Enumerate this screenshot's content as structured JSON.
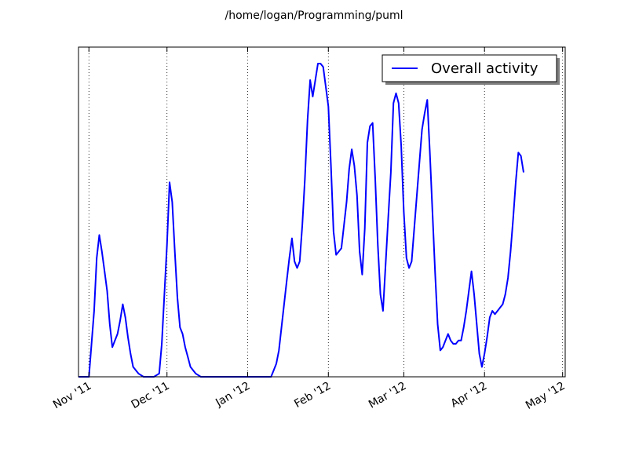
{
  "chart_data": {
    "type": "line",
    "title": "/home/logan/Programming/puml",
    "xlabel": "",
    "ylabel": "",
    "x_axis_type": "date",
    "xlim": [
      "2011-10-28",
      "2012-05-02"
    ],
    "ylim": [
      0,
      100
    ],
    "grid": {
      "x": true,
      "y": false,
      "style": "dotted"
    },
    "y_tick_labels": false,
    "legend_placement": "top-right",
    "x_ticks": [
      {
        "date": "2011-11-01",
        "label": "Nov '11"
      },
      {
        "date": "2011-12-01",
        "label": "Dec '11"
      },
      {
        "date": "2012-01-01",
        "label": "Jan '12"
      },
      {
        "date": "2012-02-01",
        "label": "Feb '12"
      },
      {
        "date": "2012-03-01",
        "label": "Mar '12"
      },
      {
        "date": "2012-04-01",
        "label": "Apr '12"
      },
      {
        "date": "2012-05-01",
        "label": "May '12"
      }
    ],
    "series": [
      {
        "name": "Overall activity",
        "color": "#0000ff",
        "points": [
          [
            "2011-10-28",
            0
          ],
          [
            "2011-11-01",
            0
          ],
          [
            "2011-11-02",
            10
          ],
          [
            "2011-11-03",
            20
          ],
          [
            "2011-11-04",
            36
          ],
          [
            "2011-11-05",
            43
          ],
          [
            "2011-11-06",
            38
          ],
          [
            "2011-11-07",
            32
          ],
          [
            "2011-11-08",
            26
          ],
          [
            "2011-11-09",
            16
          ],
          [
            "2011-11-10",
            9
          ],
          [
            "2011-11-11",
            11
          ],
          [
            "2011-11-12",
            13
          ],
          [
            "2011-11-13",
            17
          ],
          [
            "2011-11-14",
            22
          ],
          [
            "2011-11-15",
            18
          ],
          [
            "2011-11-16",
            12
          ],
          [
            "2011-11-17",
            7
          ],
          [
            "2011-11-18",
            3
          ],
          [
            "2011-11-20",
            1
          ],
          [
            "2011-11-22",
            0
          ],
          [
            "2011-11-26",
            0
          ],
          [
            "2011-11-28",
            1
          ],
          [
            "2011-11-29",
            10
          ],
          [
            "2011-11-30",
            25
          ],
          [
            "2011-12-01",
            40
          ],
          [
            "2011-12-02",
            59
          ],
          [
            "2011-12-03",
            53
          ],
          [
            "2011-12-04",
            38
          ],
          [
            "2011-12-05",
            24
          ],
          [
            "2011-12-06",
            15
          ],
          [
            "2011-12-07",
            13
          ],
          [
            "2011-12-08",
            9
          ],
          [
            "2011-12-09",
            6
          ],
          [
            "2011-12-10",
            3
          ],
          [
            "2011-12-12",
            1
          ],
          [
            "2011-12-14",
            0
          ],
          [
            "2011-12-20",
            0
          ],
          [
            "2012-01-01",
            0
          ],
          [
            "2012-01-10",
            0
          ],
          [
            "2012-01-11",
            2
          ],
          [
            "2012-01-12",
            4
          ],
          [
            "2012-01-13",
            8
          ],
          [
            "2012-01-14",
            15
          ],
          [
            "2012-01-15",
            22
          ],
          [
            "2012-01-16",
            29
          ],
          [
            "2012-01-17",
            36
          ],
          [
            "2012-01-18",
            42
          ],
          [
            "2012-01-19",
            35
          ],
          [
            "2012-01-20",
            33
          ],
          [
            "2012-01-21",
            35
          ],
          [
            "2012-01-22",
            46
          ],
          [
            "2012-01-23",
            60
          ],
          [
            "2012-01-24",
            78
          ],
          [
            "2012-01-25",
            90
          ],
          [
            "2012-01-26",
            85
          ],
          [
            "2012-01-27",
            90
          ],
          [
            "2012-01-28",
            95
          ],
          [
            "2012-01-29",
            95
          ],
          [
            "2012-01-30",
            94
          ],
          [
            "2012-01-31",
            88
          ],
          [
            "2012-02-01",
            82
          ],
          [
            "2012-02-02",
            64
          ],
          [
            "2012-02-03",
            44
          ],
          [
            "2012-02-04",
            37
          ],
          [
            "2012-02-05",
            38
          ],
          [
            "2012-02-06",
            39
          ],
          [
            "2012-02-07",
            46
          ],
          [
            "2012-02-08",
            53
          ],
          [
            "2012-02-09",
            63
          ],
          [
            "2012-02-10",
            69
          ],
          [
            "2012-02-11",
            64
          ],
          [
            "2012-02-12",
            55
          ],
          [
            "2012-02-13",
            38
          ],
          [
            "2012-02-14",
            31
          ],
          [
            "2012-02-15",
            45
          ],
          [
            "2012-02-16",
            71
          ],
          [
            "2012-02-17",
            76
          ],
          [
            "2012-02-18",
            77
          ],
          [
            "2012-02-19",
            60
          ],
          [
            "2012-02-20",
            40
          ],
          [
            "2012-02-21",
            25
          ],
          [
            "2012-02-22",
            20
          ],
          [
            "2012-02-23",
            34
          ],
          [
            "2012-02-24",
            48
          ],
          [
            "2012-02-25",
            62
          ],
          [
            "2012-02-26",
            83
          ],
          [
            "2012-02-27",
            86
          ],
          [
            "2012-02-28",
            83
          ],
          [
            "2012-02-29",
            70
          ],
          [
            "2012-03-01",
            50
          ],
          [
            "2012-03-02",
            36
          ],
          [
            "2012-03-03",
            33
          ],
          [
            "2012-03-04",
            35
          ],
          [
            "2012-03-05",
            45
          ],
          [
            "2012-03-06",
            55
          ],
          [
            "2012-03-07",
            65
          ],
          [
            "2012-03-08",
            75
          ],
          [
            "2012-03-09",
            80
          ],
          [
            "2012-03-10",
            84
          ],
          [
            "2012-03-11",
            68
          ],
          [
            "2012-03-12",
            50
          ],
          [
            "2012-03-13",
            32
          ],
          [
            "2012-03-14",
            16
          ],
          [
            "2012-03-15",
            8
          ],
          [
            "2012-03-16",
            9
          ],
          [
            "2012-03-17",
            11
          ],
          [
            "2012-03-18",
            13
          ],
          [
            "2012-03-19",
            11
          ],
          [
            "2012-03-20",
            10
          ],
          [
            "2012-03-21",
            10
          ],
          [
            "2012-03-22",
            11
          ],
          [
            "2012-03-23",
            11
          ],
          [
            "2012-03-24",
            15
          ],
          [
            "2012-03-25",
            20
          ],
          [
            "2012-03-26",
            26
          ],
          [
            "2012-03-27",
            32
          ],
          [
            "2012-03-28",
            25
          ],
          [
            "2012-03-29",
            16
          ],
          [
            "2012-03-30",
            7
          ],
          [
            "2012-03-31",
            3
          ],
          [
            "2012-04-01",
            7
          ],
          [
            "2012-04-02",
            12
          ],
          [
            "2012-04-03",
            18
          ],
          [
            "2012-04-04",
            20
          ],
          [
            "2012-04-05",
            19
          ],
          [
            "2012-04-06",
            20
          ],
          [
            "2012-04-07",
            21
          ],
          [
            "2012-04-08",
            22
          ],
          [
            "2012-04-09",
            25
          ],
          [
            "2012-04-10",
            30
          ],
          [
            "2012-04-11",
            38
          ],
          [
            "2012-04-12",
            48
          ],
          [
            "2012-04-13",
            59
          ],
          [
            "2012-04-14",
            68
          ],
          [
            "2012-04-15",
            67
          ],
          [
            "2012-04-16",
            62
          ]
        ]
      }
    ]
  }
}
